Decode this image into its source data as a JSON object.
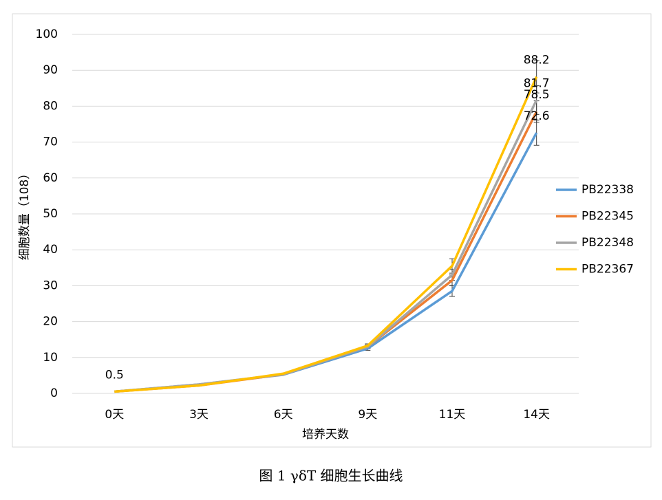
{
  "chart_data": {
    "type": "line",
    "y_label": "细胞数量（108）",
    "x_label": "培养天数",
    "categories": [
      "0天",
      "3天",
      "6天",
      "9天",
      "11天",
      "14天"
    ],
    "series": [
      {
        "name": "PB22338",
        "color": "#5b9bd5",
        "values": [
          0.5,
          2.5,
          5.2,
          12.5,
          28.5,
          72.6
        ],
        "errors": [
          null,
          null,
          null,
          0.5,
          1.5,
          3.5
        ],
        "value_labels": [
          null,
          null,
          null,
          null,
          null,
          "72.6"
        ]
      },
      {
        "name": "PB22345",
        "color": "#ed7d31",
        "values": [
          0.5,
          2.2,
          5.3,
          13,
          31.5,
          78.5
        ],
        "errors": [
          null,
          null,
          null,
          0.5,
          1.5,
          3
        ],
        "value_labels": [
          null,
          null,
          null,
          null,
          null,
          "78.5"
        ]
      },
      {
        "name": "PB22348",
        "color": "#a5a5a5",
        "values": [
          0.5,
          2.5,
          5.3,
          13,
          33,
          81.7
        ],
        "errors": [
          null,
          null,
          null,
          0.5,
          1.5,
          4
        ],
        "value_labels": [
          null,
          null,
          null,
          null,
          null,
          "81.7"
        ]
      },
      {
        "name": "PB22367",
        "color": "#ffc000",
        "values": [
          0.5,
          2.2,
          5.5,
          13.3,
          35.5,
          88.2
        ],
        "errors": [
          null,
          null,
          null,
          0.5,
          2,
          4.5
        ],
        "value_labels": [
          "0.5",
          null,
          null,
          null,
          null,
          "88.2"
        ]
      }
    ],
    "ylim": [
      0,
      100
    ],
    "yticks": [
      0,
      10,
      20,
      30,
      40,
      50,
      60,
      70,
      80,
      90,
      100
    ],
    "grid": true,
    "legend": "right"
  },
  "caption": "图 1 γδT 细胞生长曲线"
}
